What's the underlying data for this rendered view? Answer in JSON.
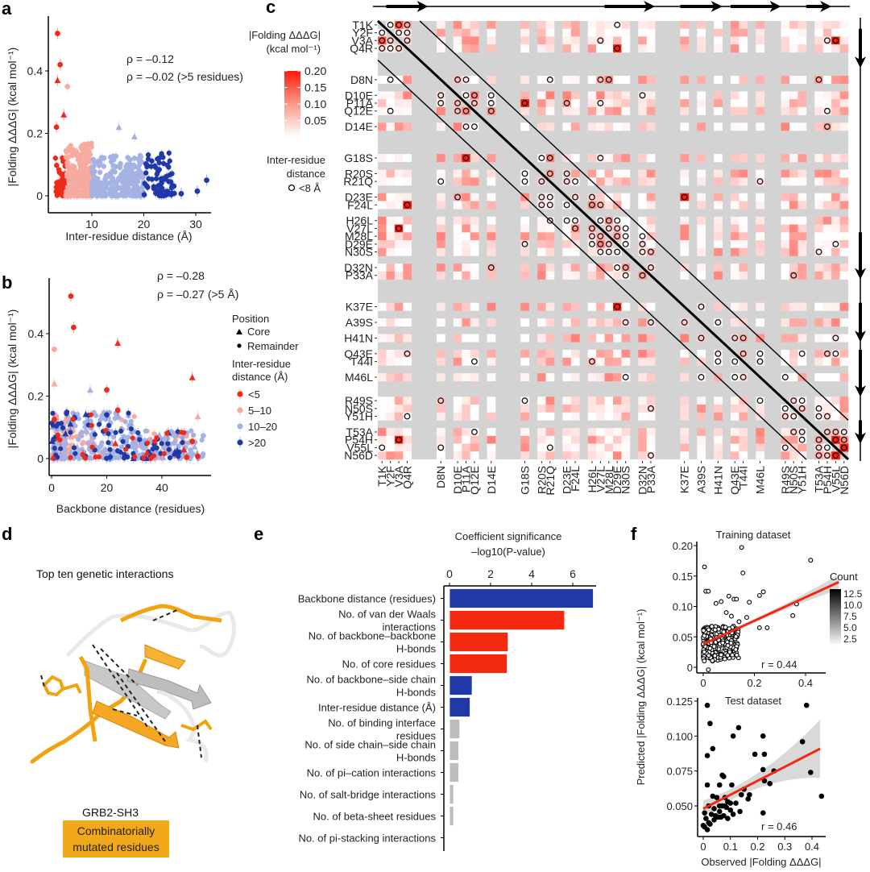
{
  "figure": {
    "panels": [
      "a",
      "b",
      "c",
      "d",
      "e",
      "f"
    ]
  },
  "chart_data": [
    {
      "id": "a",
      "type": "scatter",
      "xlabel": "Inter-residue distance (Å)",
      "ylabel": "|Folding ΔΔΔG| (kcal mol⁻¹)",
      "xticks": [
        "10",
        "20",
        "30"
      ],
      "xtick_values": [
        10,
        20,
        30
      ],
      "yticks": [
        "0",
        "0.2",
        "0.4"
      ],
      "ytick_values": [
        0,
        0.2,
        0.4
      ],
      "xlim": [
        2,
        33
      ],
      "ylim": [
        -0.04,
        0.56
      ],
      "annotations": [
        "ρ = –0.12",
        "ρ = –0.02 (>5 residues)"
      ],
      "groups": [
        {
          "name": "<5",
          "color": "#ee2a1b",
          "x_range": [
            3,
            5
          ]
        },
        {
          "name": "5–10",
          "color": "#f7aaa0",
          "x_range": [
            5,
            10
          ]
        },
        {
          "name": "10–20",
          "color": "#a4b2e4",
          "x_range": [
            10,
            20
          ]
        },
        {
          "name": ">20",
          "color": "#1f3aa6",
          "x_range": [
            20,
            33
          ]
        }
      ],
      "highlight_points": [
        {
          "x": 3.4,
          "y": 0.52,
          "shape": "circle",
          "group": "<5"
        },
        {
          "x": 3.9,
          "y": 0.42,
          "shape": "circle",
          "group": "<5"
        },
        {
          "x": 3.4,
          "y": 0.37,
          "shape": "triangle",
          "group": "<5"
        },
        {
          "x": 5.3,
          "y": 0.35,
          "shape": "circle",
          "group": "5–10"
        },
        {
          "x": 4.6,
          "y": 0.26,
          "shape": "triangle",
          "group": "<5"
        },
        {
          "x": 3.2,
          "y": 0.22,
          "shape": "circle",
          "group": "<5"
        },
        {
          "x": 15.2,
          "y": 0.22,
          "shape": "triangle",
          "group": "10–20"
        },
        {
          "x": 18.2,
          "y": 0.19,
          "shape": "triangle",
          "group": "10–20"
        },
        {
          "x": 30.3,
          "y": 0.015,
          "shape": "circle",
          "group": ">20"
        },
        {
          "x": 32.1,
          "y": 0.05,
          "shape": "circle",
          "group": ">20"
        },
        {
          "x": 27.2,
          "y": 0.007,
          "shape": "circle",
          "group": ">20"
        }
      ]
    },
    {
      "id": "b",
      "type": "scatter",
      "xlabel": "Backbone distance (residues)",
      "ylabel": "|Folding ΔΔΔG| (kcal mol⁻¹)",
      "xticks": [
        "0",
        "20",
        "40"
      ],
      "xtick_values": [
        0,
        20,
        40
      ],
      "yticks": [
        "0",
        "0.2",
        "0.4"
      ],
      "ytick_values": [
        0,
        0.2,
        0.4
      ],
      "xlim": [
        -1,
        57
      ],
      "ylim": [
        -0.04,
        0.56
      ],
      "annotations": [
        "ρ = –0.28",
        "ρ = –0.27 (>5 Å)"
      ],
      "legend": {
        "position_title": "Position",
        "position_items": [
          {
            "shape": "triangle",
            "label": "Core"
          },
          {
            "shape": "circle",
            "label": "Remainder"
          }
        ],
        "distance_title_1": "Inter-residue",
        "distance_title_2": "distance (Å)",
        "distance_items": [
          {
            "label": "<5",
            "color": "#ee2a1b"
          },
          {
            "label": "5–10",
            "color": "#f7aaa0"
          },
          {
            "label": "10–20",
            "color": "#a4b2e4"
          },
          {
            "label": ">20",
            "color": "#1f3aa6"
          }
        ]
      },
      "highlight_points": [
        {
          "x": 7,
          "y": 0.52,
          "shape": "circle",
          "group": "<5"
        },
        {
          "x": 8,
          "y": 0.42,
          "shape": "circle",
          "group": "<5"
        },
        {
          "x": 24,
          "y": 0.37,
          "shape": "triangle",
          "group": "<5"
        },
        {
          "x": 1,
          "y": 0.35,
          "shape": "circle",
          "group": "5–10"
        },
        {
          "x": 51,
          "y": 0.26,
          "shape": "triangle",
          "group": "<5"
        },
        {
          "x": 1,
          "y": 0.24,
          "shape": "triangle",
          "group": "5–10"
        },
        {
          "x": 20,
          "y": 0.22,
          "shape": "circle",
          "group": "<5"
        },
        {
          "x": 14,
          "y": 0.22,
          "shape": "triangle",
          "group": "10–20"
        },
        {
          "x": 24,
          "y": 0.155,
          "shape": "circle",
          "group": "<5"
        },
        {
          "x": 20,
          "y": 0.14,
          "shape": "circle",
          "group": ">20"
        },
        {
          "x": 53,
          "y": 0.135,
          "shape": "triangle",
          "group": "5–10"
        },
        {
          "x": 1,
          "y": 0.125,
          "shape": "circle",
          "group": "<5"
        },
        {
          "x": 51,
          "y": 0.055,
          "shape": "circle",
          "group": "<5"
        },
        {
          "x": 53,
          "y": 0.007,
          "shape": "circle",
          "group": "<5"
        },
        {
          "x": 49,
          "y": 0.004,
          "shape": "circle",
          "group": "<5"
        },
        {
          "x": 55,
          "y": 0.073,
          "shape": "circle",
          "group": "10–20"
        }
      ]
    },
    {
      "id": "c",
      "type": "heatmap",
      "colorbar_title_1": "|Folding ΔΔΔG|",
      "colorbar_title_2": "(kcal mol⁻¹)",
      "colorbar_ticks": [
        "0.20",
        "0.15",
        "0.10",
        "0.05"
      ],
      "colorbar_tick_values": [
        0.2,
        0.15,
        0.1,
        0.05
      ],
      "colorbar_range": [
        0,
        0.2
      ],
      "contact_legend_1": "Inter-residue",
      "contact_legend_2": "distance",
      "contact_legend_3": "<8 Å",
      "residue_positions": [
        1,
        2,
        3,
        4,
        8,
        10,
        11,
        12,
        14,
        18,
        20,
        21,
        23,
        24,
        26,
        27,
        28,
        29,
        30,
        32,
        33,
        37,
        39,
        41,
        43,
        44,
        46,
        49,
        50,
        51,
        53,
        54,
        55,
        56
      ],
      "residue_labels": [
        "T1K",
        "Y2F",
        "V3A",
        "Q4R",
        "D8N",
        "D10E",
        "P11A",
        "Q12E",
        "D14E",
        "G18S",
        "R20S",
        "R21Q",
        "D23E",
        "F24L",
        "H26L",
        "V27L",
        "M28L",
        "D29E",
        "N30S",
        "D32N",
        "P33A",
        "K37E",
        "A39S",
        "H41N",
        "Q43E",
        "T44I",
        "M46L",
        "R49S",
        "N50S",
        "Y51H",
        "T53A",
        "P54H",
        "V55L",
        "N56D"
      ],
      "secondary_structure_strands": [
        [
          2,
          6
        ],
        [
          28,
          33
        ],
        [
          37,
          41
        ],
        [
          43,
          48
        ],
        [
          52,
          54
        ]
      ],
      "strong_cells": [
        {
          "row": "T1K",
          "col": "V3A",
          "value": 0.15
        },
        {
          "row": "V3A",
          "col": "T1K",
          "value": 0.15
        },
        {
          "row": "Q4R",
          "col": "D29E",
          "value": 0.2
        },
        {
          "row": "P11A",
          "col": "G18S",
          "value": 0.2
        },
        {
          "row": "G18S",
          "col": "P11A",
          "value": 0.2
        },
        {
          "row": "F24L",
          "col": "Q4R",
          "value": 0.2
        },
        {
          "row": "V27L",
          "col": "V3A",
          "value": 0.2
        },
        {
          "row": "D23E",
          "col": "K37E",
          "value": 0.2
        },
        {
          "row": "K37E",
          "col": "D29E",
          "value": 0.2
        },
        {
          "row": "P54H",
          "col": "V3A",
          "value": 0.2
        },
        {
          "row": "P54H",
          "col": "V55L",
          "value": 0.2
        },
        {
          "row": "V55L",
          "col": "N56D",
          "value": 0.2
        },
        {
          "row": "N56D",
          "col": "V55L",
          "value": 0.2
        },
        {
          "row": "V3A",
          "col": "V55L",
          "value": 0.2
        }
      ]
    },
    {
      "id": "e",
      "type": "bar",
      "orientation": "horizontal",
      "title_1": "Coefficient significance",
      "title_2": "–log10(P-value)",
      "xticks": [
        "0",
        "2",
        "4",
        "6"
      ],
      "xtick_values": [
        0,
        2,
        4,
        6
      ],
      "xlim": [
        0,
        7
      ],
      "categories": [
        [
          "Backbone distance (residues)"
        ],
        [
          "No. of van der Waals",
          "interactions"
        ],
        [
          "No. of backbone–backbone",
          "H-bonds"
        ],
        [
          "No. of core residues"
        ],
        [
          "No. of backbone–side chain",
          "H-bonds"
        ],
        [
          "Inter-residue distance (Å)"
        ],
        [
          "No. of binding interface",
          "residues"
        ],
        [
          "No. of side chain–side chain",
          "H-bonds"
        ],
        [
          "No. of pi–cation interactions"
        ],
        [
          "No. of salt-bridge interactions"
        ],
        [
          "No. of beta-sheet residues"
        ],
        [
          "No. of pi-stacking interactions"
        ]
      ],
      "values": [
        7.0,
        5.6,
        2.85,
        2.8,
        1.1,
        1.0,
        0.5,
        0.45,
        0.45,
        0.2,
        0.2,
        0.02
      ],
      "colors": [
        "#2039a6",
        "#f2290f",
        "#f2290f",
        "#f2290f",
        "#2039a6",
        "#2039a6",
        "#bdbdbd",
        "#bdbdbd",
        "#bdbdbd",
        "#bdbdbd",
        "#bdbdbd",
        "#bdbdbd"
      ]
    },
    {
      "id": "f-train",
      "type": "scatter",
      "title": "Training dataset",
      "xticks": [
        "0",
        "0.2",
        "0.4"
      ],
      "xtick_values": [
        0,
        0.2,
        0.4
      ],
      "yticks": [
        "0",
        "0.05",
        "0.10",
        "0.15",
        "0.20"
      ],
      "ytick_values": [
        0,
        0.05,
        0.1,
        0.15,
        0.2
      ],
      "xlim": [
        -0.02,
        0.54
      ],
      "ylim": [
        -0.008,
        0.205
      ],
      "annotation": "r = 0.44",
      "fit": {
        "x0": 0,
        "y0": 0.038,
        "x1": 0.53,
        "y1": 0.14
      },
      "legend_title": "Count",
      "legend_ticks": [
        "12.5",
        "10.0",
        "7.5",
        "5.0",
        "2.5"
      ],
      "points": [
        [
          0.15,
          0.197
        ],
        [
          0.42,
          0.176
        ],
        [
          0.005,
          0.165
        ],
        [
          0.155,
          0.155
        ],
        [
          0.35,
          0.085
        ],
        [
          0.365,
          0.104
        ],
        [
          0.53,
          0.1
        ],
        [
          0.22,
          0.065
        ],
        [
          0.25,
          0.065
        ],
        [
          0.22,
          0.118
        ],
        [
          0.235,
          0.124
        ],
        [
          0.01,
          0.125
        ],
        [
          0.02,
          0.125
        ],
        [
          0.1,
          0.117
        ],
        [
          0.12,
          0.112
        ],
        [
          0.13,
          0.112
        ],
        [
          0.18,
          0.107
        ],
        [
          0.02,
          -0.004
        ],
        [
          0.05,
          0.105
        ],
        [
          0.07,
          0.108
        ],
        [
          0.09,
          0.09
        ],
        [
          0.11,
          0.084
        ],
        [
          0.14,
          0.075
        ],
        [
          0.17,
          0.082
        ]
      ]
    },
    {
      "id": "f-test",
      "type": "scatter",
      "title": "Test dataset",
      "xlabel": "Observed |Folding ΔΔΔG|",
      "ylabel": "Predicted |Folding ΔΔΔG| (kcal mol⁻¹)",
      "xticks": [
        "0",
        "0.1",
        "0.2",
        "0.3",
        "0.4"
      ],
      "xtick_values": [
        0,
        0.1,
        0.2,
        0.3,
        0.4
      ],
      "yticks": [
        "0.050",
        "0.075",
        "0.100",
        "0.125"
      ],
      "ytick_values": [
        0.05,
        0.075,
        0.1,
        0.125
      ],
      "xlim": [
        -0.01,
        0.45
      ],
      "ylim": [
        0.03,
        0.127
      ],
      "annotation": "r = 0.46",
      "fit": {
        "x0": 0,
        "y0": 0.048,
        "x1": 0.43,
        "y1": 0.091
      },
      "points": [
        [
          0.015,
          0.122
        ],
        [
          0.38,
          0.122
        ],
        [
          0.025,
          0.109
        ],
        [
          0.13,
          0.106
        ],
        [
          0.11,
          0.1
        ],
        [
          0.22,
          0.1
        ],
        [
          0.365,
          0.096
        ],
        [
          0.035,
          0.091
        ],
        [
          0.015,
          0.086
        ],
        [
          0.19,
          0.087
        ],
        [
          0.225,
          0.087
        ],
        [
          0.395,
          0.074
        ],
        [
          0.22,
          0.076
        ],
        [
          0.26,
          0.075
        ],
        [
          0.07,
          0.072
        ],
        [
          0.075,
          0.071
        ],
        [
          0.015,
          0.065
        ],
        [
          0.105,
          0.065
        ],
        [
          0.06,
          0.065
        ],
        [
          0.225,
          0.068
        ],
        [
          0.245,
          0.066
        ],
        [
          0.15,
          0.062
        ],
        [
          0.14,
          0.058
        ],
        [
          0.17,
          0.058
        ],
        [
          0.165,
          0.055
        ],
        [
          0.435,
          0.057
        ],
        [
          0.035,
          0.057
        ],
        [
          0.05,
          0.056
        ],
        [
          0.08,
          0.056
        ],
        [
          0.09,
          0.053
        ],
        [
          0.12,
          0.052
        ],
        [
          0.02,
          0.05
        ],
        [
          0.06,
          0.05
        ],
        [
          0.085,
          0.049
        ],
        [
          0.1,
          0.047
        ],
        [
          0.135,
          0.046
        ],
        [
          0.22,
          0.045
        ],
        [
          0.005,
          0.045
        ],
        [
          0.03,
          0.044
        ],
        [
          0.045,
          0.043
        ],
        [
          0.065,
          0.042
        ],
        [
          0.09,
          0.041
        ],
        [
          0.11,
          0.044
        ],
        [
          0.0,
          0.036
        ],
        [
          0.01,
          0.041
        ],
        [
          0.02,
          0.038
        ],
        [
          0.04,
          0.04
        ],
        [
          0.055,
          0.042
        ],
        [
          0.075,
          0.043
        ],
        [
          0.005,
          0.035
        ],
        [
          0.015,
          0.033
        ],
        [
          0.025,
          0.037
        ],
        [
          0.06,
          0.046
        ],
        [
          0.08,
          0.05
        ],
        [
          0.1,
          0.052
        ],
        [
          0.04,
          0.048
        ],
        [
          0.07,
          0.05
        ]
      ]
    }
  ],
  "panel_d": {
    "title": "Top ten genetic interactions",
    "protein": "GRB2-SH3",
    "badge_line1": "Combinatorially",
    "badge_line2": "mutated residues",
    "badge_color": "#f1a81a"
  }
}
